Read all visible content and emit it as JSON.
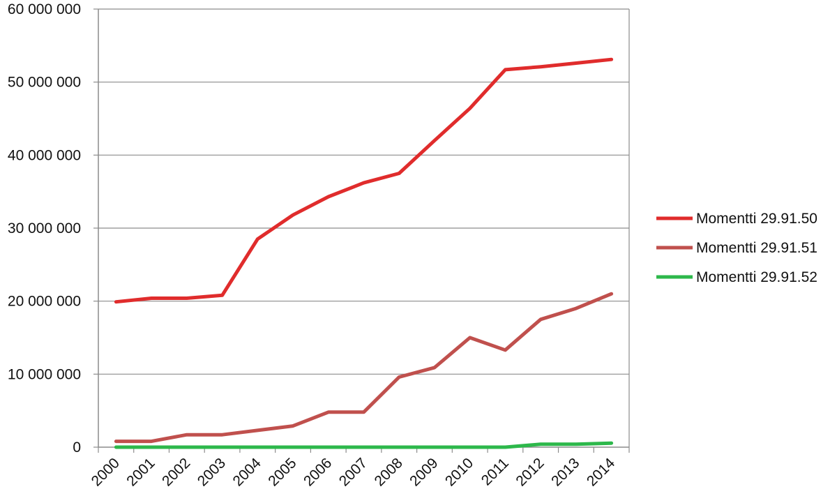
{
  "chart_data": {
    "type": "line",
    "title": "",
    "xlabel": "",
    "ylabel": "",
    "categories": [
      "2000",
      "2001",
      "2002",
      "2003",
      "2004",
      "2005",
      "2006",
      "2007",
      "2008",
      "2009",
      "2010",
      "2011",
      "2012",
      "2013",
      "2014"
    ],
    "ylim": [
      0,
      60000000
    ],
    "yticks": [
      0,
      10000000,
      20000000,
      30000000,
      40000000,
      50000000,
      60000000
    ],
    "ytick_labels": [
      "0",
      "10 000 000",
      "20 000 000",
      "30 000 000",
      "40 000 000",
      "50 000 000",
      "60 000 000"
    ],
    "grid": "horizontal",
    "legend_position": "right",
    "series": [
      {
        "name": "Momentti 29.91.50",
        "color": "#e02c2c",
        "values": [
          19900000,
          20400000,
          20400000,
          20800000,
          28500000,
          31800000,
          34300000,
          36200000,
          37500000,
          42000000,
          46400000,
          51700000,
          52100000,
          52600000,
          53100000
        ]
      },
      {
        "name": "Momentti 29.91.51",
        "color": "#c0504d",
        "values": [
          800000,
          800000,
          1700000,
          1700000,
          2300000,
          2900000,
          4800000,
          4800000,
          9600000,
          10900000,
          15000000,
          13300000,
          17500000,
          19000000,
          21000000
        ]
      },
      {
        "name": "Momentti 29.91.52",
        "color": "#2db84b",
        "values": [
          0,
          0,
          0,
          0,
          0,
          0,
          0,
          0,
          0,
          0,
          0,
          0,
          400000,
          400000,
          550000
        ]
      }
    ]
  }
}
